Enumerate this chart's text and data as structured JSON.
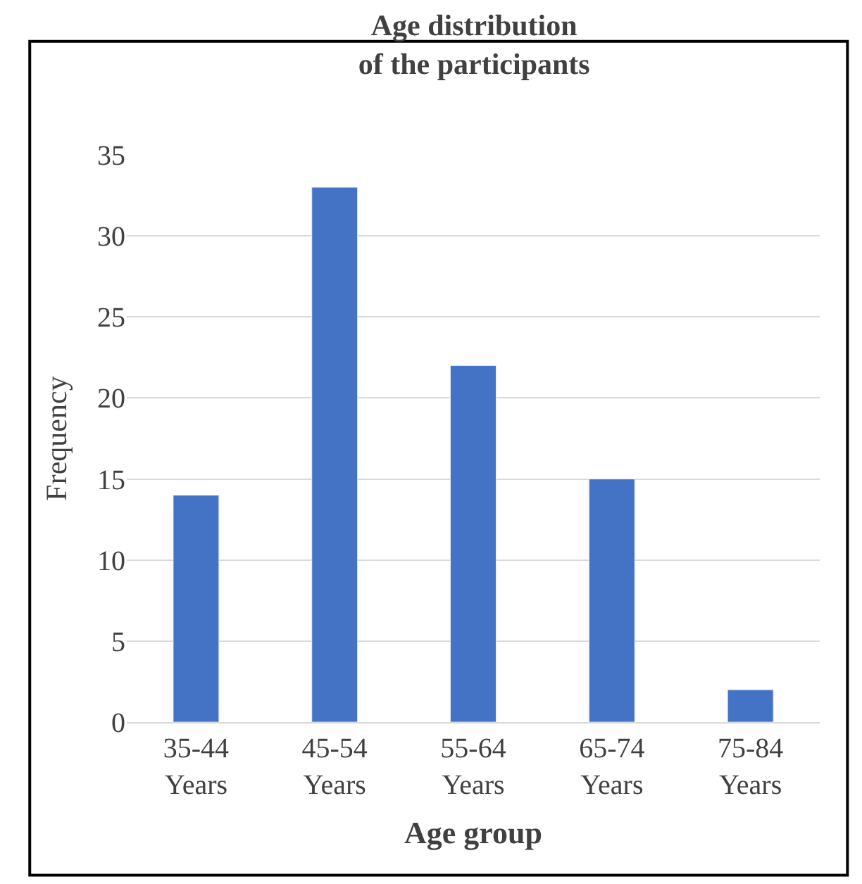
{
  "chart_data": {
    "type": "bar",
    "title": "Age distribution\nof the participants",
    "xlabel": "Age group",
    "ylabel": "Frequency",
    "categories": [
      "35-44 Years",
      "45-54 Years",
      "55-64 Years",
      "65-74 Years",
      "75-84 Years"
    ],
    "values": [
      14,
      33,
      22,
      15,
      2
    ],
    "color": "#4472c4",
    "ylim": [
      0,
      35
    ],
    "yticks": [
      0,
      5,
      10,
      15,
      20,
      25,
      30,
      35
    ],
    "grid": "y",
    "legend": false
  }
}
